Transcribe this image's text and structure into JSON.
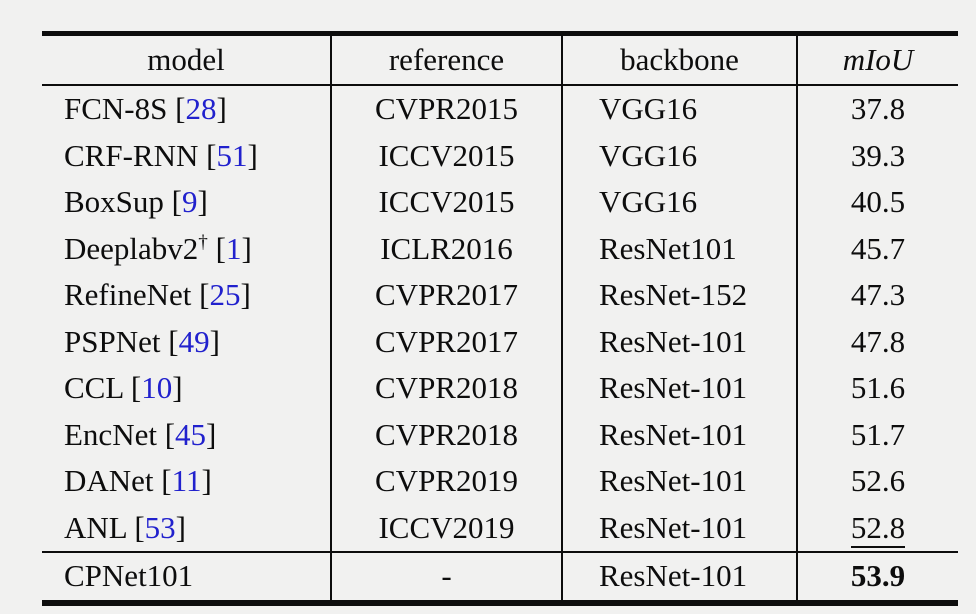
{
  "colors": {
    "background": "#f1f1f0",
    "text": "#0d0d0d",
    "citation_blue": "#2121cd"
  },
  "table": {
    "columns": [
      {
        "key": "model",
        "label": "model"
      },
      {
        "key": "reference",
        "label": "reference"
      },
      {
        "key": "backbone",
        "label": "backbone"
      },
      {
        "key": "miou",
        "label": "mIoU"
      }
    ],
    "rows": [
      {
        "model": "FCN-8S",
        "cite": "28",
        "reference": "CVPR2015",
        "backbone": "VGG16",
        "miou": "37.8"
      },
      {
        "model": "CRF-RNN",
        "cite": "51",
        "reference": "ICCV2015",
        "backbone": "VGG16",
        "miou": "39.3"
      },
      {
        "model": "BoxSup",
        "cite": "9",
        "reference": "ICCV2015",
        "backbone": "VGG16",
        "miou": "40.5"
      },
      {
        "model": "Deeplabv2",
        "sup": "†",
        "cite": "1",
        "reference": "ICLR2016",
        "backbone": "ResNet101",
        "miou": "45.7"
      },
      {
        "model": "RefineNet",
        "cite": "25",
        "reference": "CVPR2017",
        "backbone": "ResNet-152",
        "miou": "47.3"
      },
      {
        "model": "PSPNet",
        "cite": "49",
        "reference": "CVPR2017",
        "backbone": "ResNet-101",
        "miou": "47.8"
      },
      {
        "model": "CCL",
        "cite": "10",
        "reference": "CVPR2018",
        "backbone": "ResNet-101",
        "miou": "51.6"
      },
      {
        "model": "EncNet",
        "cite": "45",
        "reference": "CVPR2018",
        "backbone": "ResNet-101",
        "miou": "51.7"
      },
      {
        "model": "DANet",
        "cite": "11",
        "reference": "CVPR2019",
        "backbone": "ResNet-101",
        "miou": "52.6"
      },
      {
        "model": "ANL",
        "cite": "53",
        "reference": "ICCV2019",
        "backbone": "ResNet-101",
        "miou": "52.8",
        "miou_style": "underline"
      }
    ],
    "final_row": {
      "model": "CPNet101",
      "reference": "-",
      "backbone": "ResNet-101",
      "miou": "53.9",
      "miou_style": "bold"
    }
  }
}
